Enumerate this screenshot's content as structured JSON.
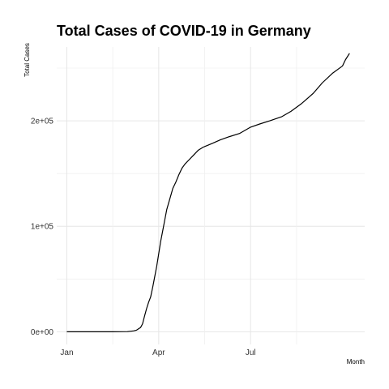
{
  "chart_data": {
    "type": "line",
    "title": "Total Cases of COVID-19 in Germany",
    "xlabel": "Month",
    "ylabel": "Total Cases",
    "x_ticks": [
      "Jan",
      "Apr",
      "Jul"
    ],
    "x_tick_dates": [
      "2020-01-01",
      "2020-04-01",
      "2020-07-01"
    ],
    "y_ticks": [
      {
        "value": 0,
        "label": "0e+00"
      },
      {
        "value": 100000,
        "label": "1e+05"
      },
      {
        "value": 200000,
        "label": "2e+05"
      }
    ],
    "xlim": [
      "2019-12-22",
      "2020-10-22"
    ],
    "ylim": [
      -12000,
      270000
    ],
    "grid": true,
    "series": [
      {
        "x": [
          "2020-01-01",
          "2020-02-01",
          "2020-02-15",
          "2020-03-01",
          "2020-03-07",
          "2020-03-10",
          "2020-03-14",
          "2020-03-16",
          "2020-03-18",
          "2020-03-20",
          "2020-03-22",
          "2020-03-24",
          "2020-03-26",
          "2020-03-28",
          "2020-03-30",
          "2020-04-01",
          "2020-04-03",
          "2020-04-05",
          "2020-04-07",
          "2020-04-09",
          "2020-04-12",
          "2020-04-15",
          "2020-04-18",
          "2020-04-21",
          "2020-04-24",
          "2020-04-27",
          "2020-05-01",
          "2020-05-05",
          "2020-05-10",
          "2020-05-15",
          "2020-05-20",
          "2020-05-25",
          "2020-06-01",
          "2020-06-10",
          "2020-06-20",
          "2020-07-01",
          "2020-07-10",
          "2020-07-20",
          "2020-08-01",
          "2020-08-10",
          "2020-08-20",
          "2020-09-01",
          "2020-09-10",
          "2020-09-20",
          "2020-09-30",
          "2020-10-03",
          "2020-10-07"
        ],
        "y": [
          0,
          0,
          20,
          130,
          800,
          1500,
          4000,
          7500,
          15000,
          22000,
          28000,
          33000,
          42000,
          52000,
          62000,
          74000,
          86000,
          96000,
          106000,
          116000,
          126000,
          136000,
          142000,
          149000,
          155000,
          159000,
          163000,
          167000,
          172000,
          175000,
          177000,
          179000,
          182000,
          185000,
          188000,
          194000,
          197000,
          200000,
          204000,
          209000,
          216000,
          226000,
          236000,
          245000,
          252000,
          258000,
          264000
        ]
      }
    ]
  }
}
